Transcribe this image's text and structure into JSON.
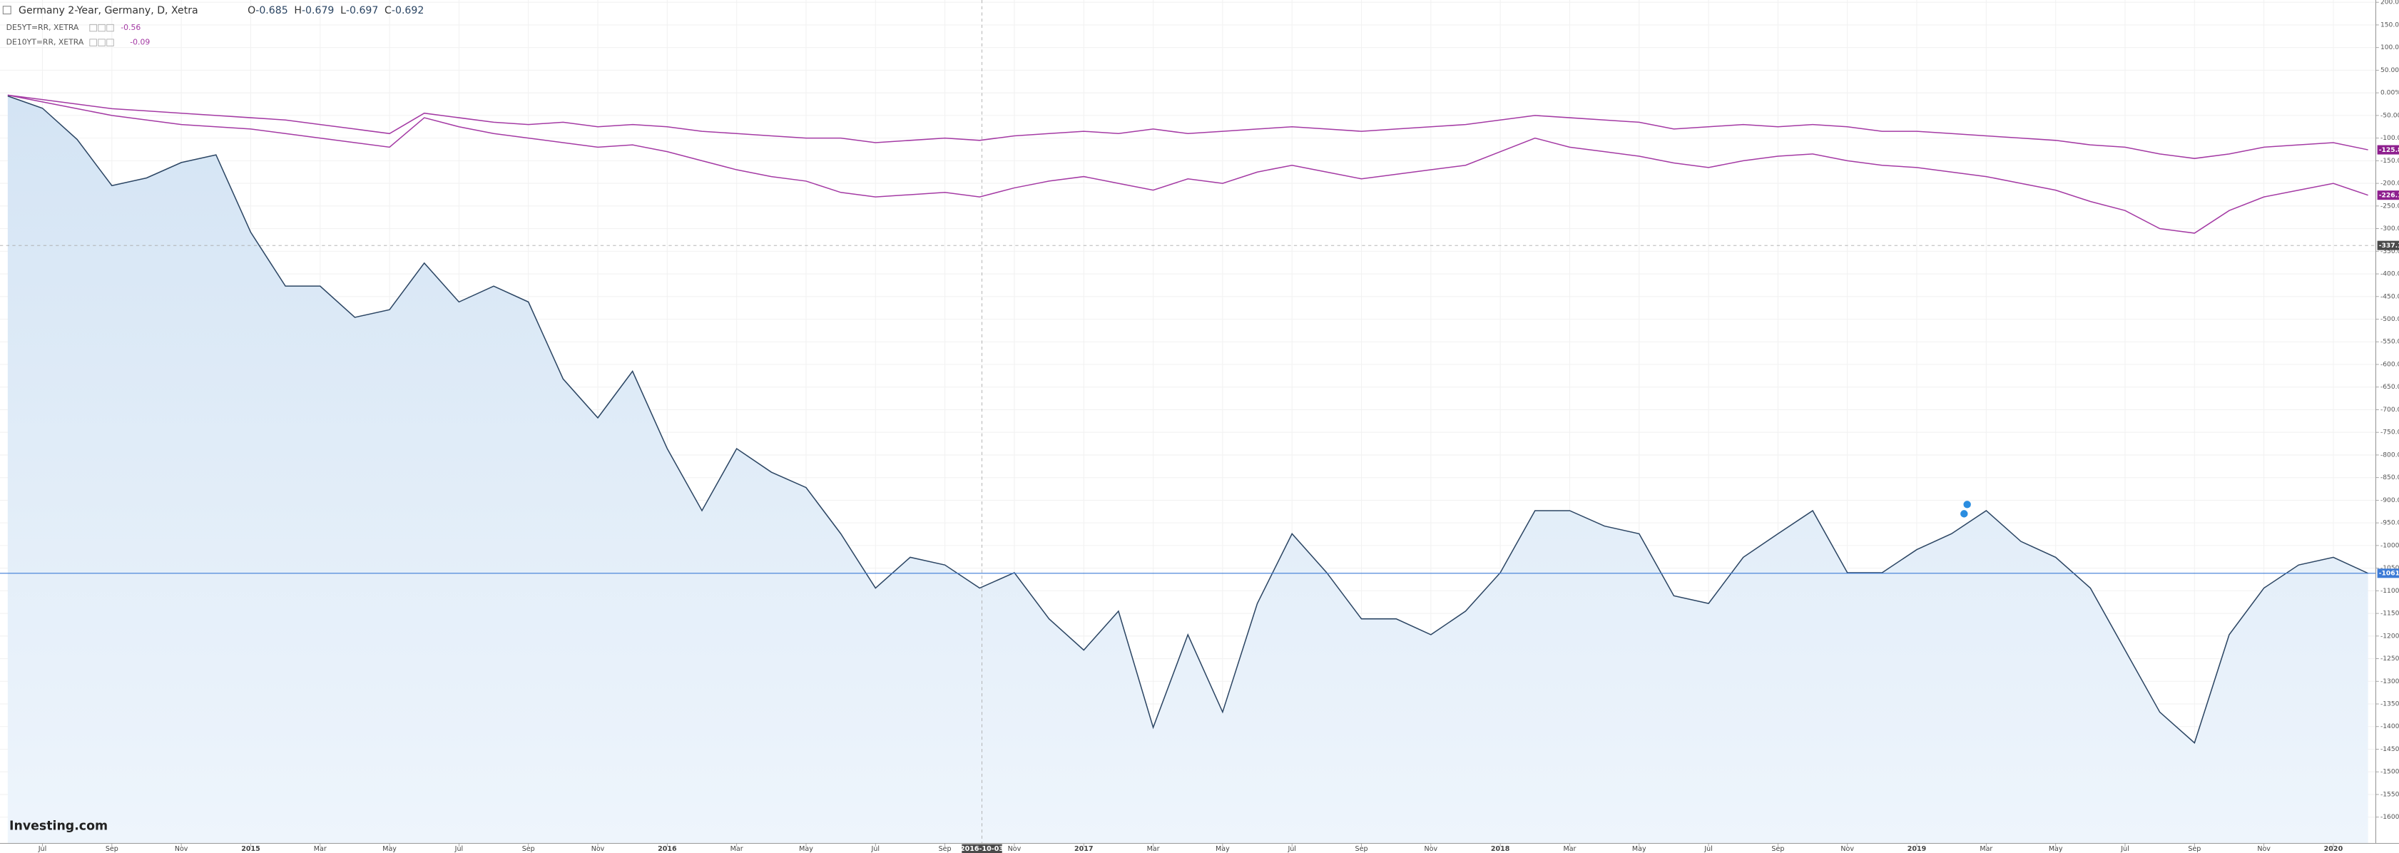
{
  "header": {
    "title": "Germany 2-Year, Germany, D, Xetra",
    "ohlc": [
      {
        "label": "O",
        "value": -0.685
      },
      {
        "label": "H",
        "value": -0.679
      },
      {
        "label": "L",
        "value": -0.697
      },
      {
        "label": "C",
        "value": -0.692
      }
    ],
    "compare": [
      {
        "name": "DE5YT=RR, XETRA",
        "value": -0.56
      },
      {
        "name": "DE10YT=RR, XETRA",
        "value": -0.09
      }
    ]
  },
  "watermark": "Investing.com",
  "chart_data": {
    "type": "line",
    "x": [
      "2014-06",
      "2014-07",
      "2014-08",
      "2014-09",
      "2014-10",
      "2014-11",
      "2014-12",
      "2015-01",
      "2015-02",
      "2015-03",
      "2015-04",
      "2015-05",
      "2015-06",
      "2015-07",
      "2015-08",
      "2015-09",
      "2015-10",
      "2015-11",
      "2015-12",
      "2016-01",
      "2016-02",
      "2016-03",
      "2016-04",
      "2016-05",
      "2016-06",
      "2016-07",
      "2016-08",
      "2016-09",
      "2016-10",
      "2016-11",
      "2016-12",
      "2017-01",
      "2017-02",
      "2017-03",
      "2017-04",
      "2017-05",
      "2017-06",
      "2017-07",
      "2017-08",
      "2017-09",
      "2017-10",
      "2017-11",
      "2017-12",
      "2018-01",
      "2018-02",
      "2018-03",
      "2018-04",
      "2018-05",
      "2018-06",
      "2018-07",
      "2018-08",
      "2018-09",
      "2018-10",
      "2018-11",
      "2018-12",
      "2019-01",
      "2019-02",
      "2019-03",
      "2019-04",
      "2019-05",
      "2019-06",
      "2019-07",
      "2019-08",
      "2019-09",
      "2019-10",
      "2019-11",
      "2019-12",
      "2020-01",
      "2020-02"
    ],
    "series": [
      {
        "name": "Germany 2-Year",
        "color": "#2b4563",
        "area": true,
        "last_label": "-1061.36%",
        "label_color": "#3d7bd6",
        "values": [
          -7,
          -34,
          -103,
          -205,
          -188,
          -154,
          -137,
          -308,
          -427,
          -427,
          -496,
          -479,
          -376,
          -462,
          -427,
          -462,
          -632,
          -718,
          -615,
          -786,
          -923,
          -786,
          -838,
          -872,
          -974,
          -1094,
          -1026,
          -1043,
          -1094,
          -1060,
          -1162,
          -1231,
          -1145,
          -1402,
          -1197,
          -1368,
          -1128,
          -974,
          -1060,
          -1162,
          -1162,
          -1197,
          -1145,
          -1060,
          -923,
          -923,
          -957,
          -974,
          -1111,
          -1128,
          -1026,
          -974,
          -923,
          -1060,
          -1060,
          -1009,
          -974,
          -923,
          -991,
          -1026,
          -1094,
          -1231,
          -1368,
          -1436,
          -1197,
          -1094,
          -1043,
          -1026,
          -1061.36
        ]
      },
      {
        "name": "DE5YT=RR, XETRA",
        "color": "#a43aa4",
        "area": false,
        "last_label": "-125.89%",
        "label_color": "#8e1f8e",
        "values": [
          -5,
          -15,
          -25,
          -35,
          -40,
          -45,
          -50,
          -55,
          -60,
          -70,
          -80,
          -90,
          -45,
          -55,
          -65,
          -70,
          -65,
          -75,
          -70,
          -75,
          -85,
          -90,
          -95,
          -100,
          -100,
          -110,
          -105,
          -100,
          -105,
          -95,
          -90,
          -85,
          -90,
          -80,
          -90,
          -85,
          -80,
          -75,
          -80,
          -85,
          -80,
          -75,
          -70,
          -60,
          -50,
          -55,
          -60,
          -65,
          -80,
          -75,
          -70,
          -75,
          -70,
          -75,
          -85,
          -85,
          -90,
          -95,
          -100,
          -105,
          -115,
          -120,
          -135,
          -145,
          -135,
          -120,
          -115,
          -110,
          -125.89
        ]
      },
      {
        "name": "DE10YT=RR, XETRA",
        "color": "#a43aa4",
        "area": false,
        "last_label": "-226.12%",
        "label_color": "#8e1f8e",
        "values": [
          -5,
          -20,
          -35,
          -50,
          -60,
          -70,
          -75,
          -80,
          -90,
          -100,
          -110,
          -120,
          -55,
          -75,
          -90,
          -100,
          -110,
          -120,
          -115,
          -130,
          -150,
          -170,
          -185,
          -195,
          -220,
          -230,
          -225,
          -220,
          -230,
          -210,
          -195,
          -185,
          -200,
          -215,
          -190,
          -200,
          -175,
          -160,
          -175,
          -190,
          -180,
          -170,
          -160,
          -130,
          -100,
          -120,
          -130,
          -140,
          -155,
          -165,
          -150,
          -140,
          -135,
          -150,
          -160,
          -165,
          -175,
          -185,
          -200,
          -215,
          -240,
          -260,
          -300,
          -310,
          -260,
          -230,
          -215,
          -200,
          -226.12
        ]
      }
    ],
    "ylim": [
      -1658,
      205
    ],
    "yticks": [
      {
        "value": 200,
        "label": "200.00%"
      },
      {
        "value": 150,
        "label": "150.00%"
      },
      {
        "value": 100,
        "label": "100.00%"
      },
      {
        "value": 50,
        "label": "50.00%"
      },
      {
        "value": 0,
        "label": "0.00%"
      },
      {
        "value": -50,
        "label": "-50.00%"
      },
      {
        "value": -100,
        "label": "-100.00%"
      },
      {
        "value": -150,
        "label": "-150.00%"
      },
      {
        "value": -200,
        "label": "-200.00%"
      },
      {
        "value": -250,
        "label": "-250.00%"
      },
      {
        "value": -300,
        "label": "-300.00%"
      },
      {
        "value": -350,
        "label": "-350.00%"
      },
      {
        "value": -400,
        "label": "-400.00%"
      },
      {
        "value": -450,
        "label": "-450.00%"
      },
      {
        "value": -500,
        "label": "-500.00%"
      },
      {
        "value": -550,
        "label": "-550.00%"
      },
      {
        "value": -600,
        "label": "-600.00%"
      },
      {
        "value": -650,
        "label": "-650.00%"
      },
      {
        "value": -700,
        "label": "-700.00%"
      },
      {
        "value": -750,
        "label": "-750.00%"
      },
      {
        "value": -800,
        "label": "-800.00%"
      },
      {
        "value": -850,
        "label": "-850.00%"
      },
      {
        "value": -900,
        "label": "-900.00%"
      },
      {
        "value": -950,
        "label": "-950.00%"
      },
      {
        "value": -1000,
        "label": "-1000.00%"
      },
      {
        "value": -1050,
        "label": "-1050.00%"
      },
      {
        "value": -1100,
        "label": "-1100.00%"
      },
      {
        "value": -1150,
        "label": "-1150.00%"
      },
      {
        "value": -1200,
        "label": "-1200.00%"
      },
      {
        "value": -1250,
        "label": "-1250.00%"
      },
      {
        "value": -1300,
        "label": "-1300.00%"
      },
      {
        "value": -1350,
        "label": "-1350.00%"
      },
      {
        "value": -1400,
        "label": "-1400.00%"
      },
      {
        "value": -1450,
        "label": "-1450.00%"
      },
      {
        "value": -1500,
        "label": "-1500.00%"
      },
      {
        "value": -1550,
        "label": "-1550.00%"
      },
      {
        "value": -1600,
        "label": "-1600.00%"
      }
    ],
    "xticks": [
      {
        "value": "2014-07",
        "label": "Jul"
      },
      {
        "value": "2014-09",
        "label": "Sep"
      },
      {
        "value": "2014-11",
        "label": "Nov"
      },
      {
        "value": "2015-01",
        "label": "2015"
      },
      {
        "value": "2015-03",
        "label": "Mar"
      },
      {
        "value": "2015-05",
        "label": "May"
      },
      {
        "value": "2015-07",
        "label": "Jul"
      },
      {
        "value": "2015-09",
        "label": "Sep"
      },
      {
        "value": "2015-11",
        "label": "Nov"
      },
      {
        "value": "2016-01",
        "label": "2016"
      },
      {
        "value": "2016-03",
        "label": "Mar"
      },
      {
        "value": "2016-05",
        "label": "May"
      },
      {
        "value": "2016-07",
        "label": "Jul"
      },
      {
        "value": "2016-09",
        "label": "Sep"
      },
      {
        "value": "2016-11",
        "label": "Nov"
      },
      {
        "value": "2017-01",
        "label": "2017"
      },
      {
        "value": "2017-03",
        "label": "Mar"
      },
      {
        "value": "2017-05",
        "label": "May"
      },
      {
        "value": "2017-07",
        "label": "Jul"
      },
      {
        "value": "2017-09",
        "label": "Sep"
      },
      {
        "value": "2017-11",
        "label": "Nov"
      },
      {
        "value": "2018-01",
        "label": "2018"
      },
      {
        "value": "2018-03",
        "label": "Mar"
      },
      {
        "value": "2018-05",
        "label": "May"
      },
      {
        "value": "2018-07",
        "label": "Jul"
      },
      {
        "value": "2018-09",
        "label": "Sep"
      },
      {
        "value": "2018-11",
        "label": "Nov"
      },
      {
        "value": "2019-01",
        "label": "2019"
      },
      {
        "value": "2019-03",
        "label": "Mar"
      },
      {
        "value": "2019-05",
        "label": "May"
      },
      {
        "value": "2019-07",
        "label": "Jul"
      },
      {
        "value": "2019-09",
        "label": "Sep"
      },
      {
        "value": "2019-11",
        "label": "Nov"
      },
      {
        "value": "2020-01",
        "label": "2020"
      }
    ],
    "grid": true,
    "crosshair": {
      "date": "2016-10-03",
      "value": -337.163,
      "label": "-337.163"
    }
  }
}
